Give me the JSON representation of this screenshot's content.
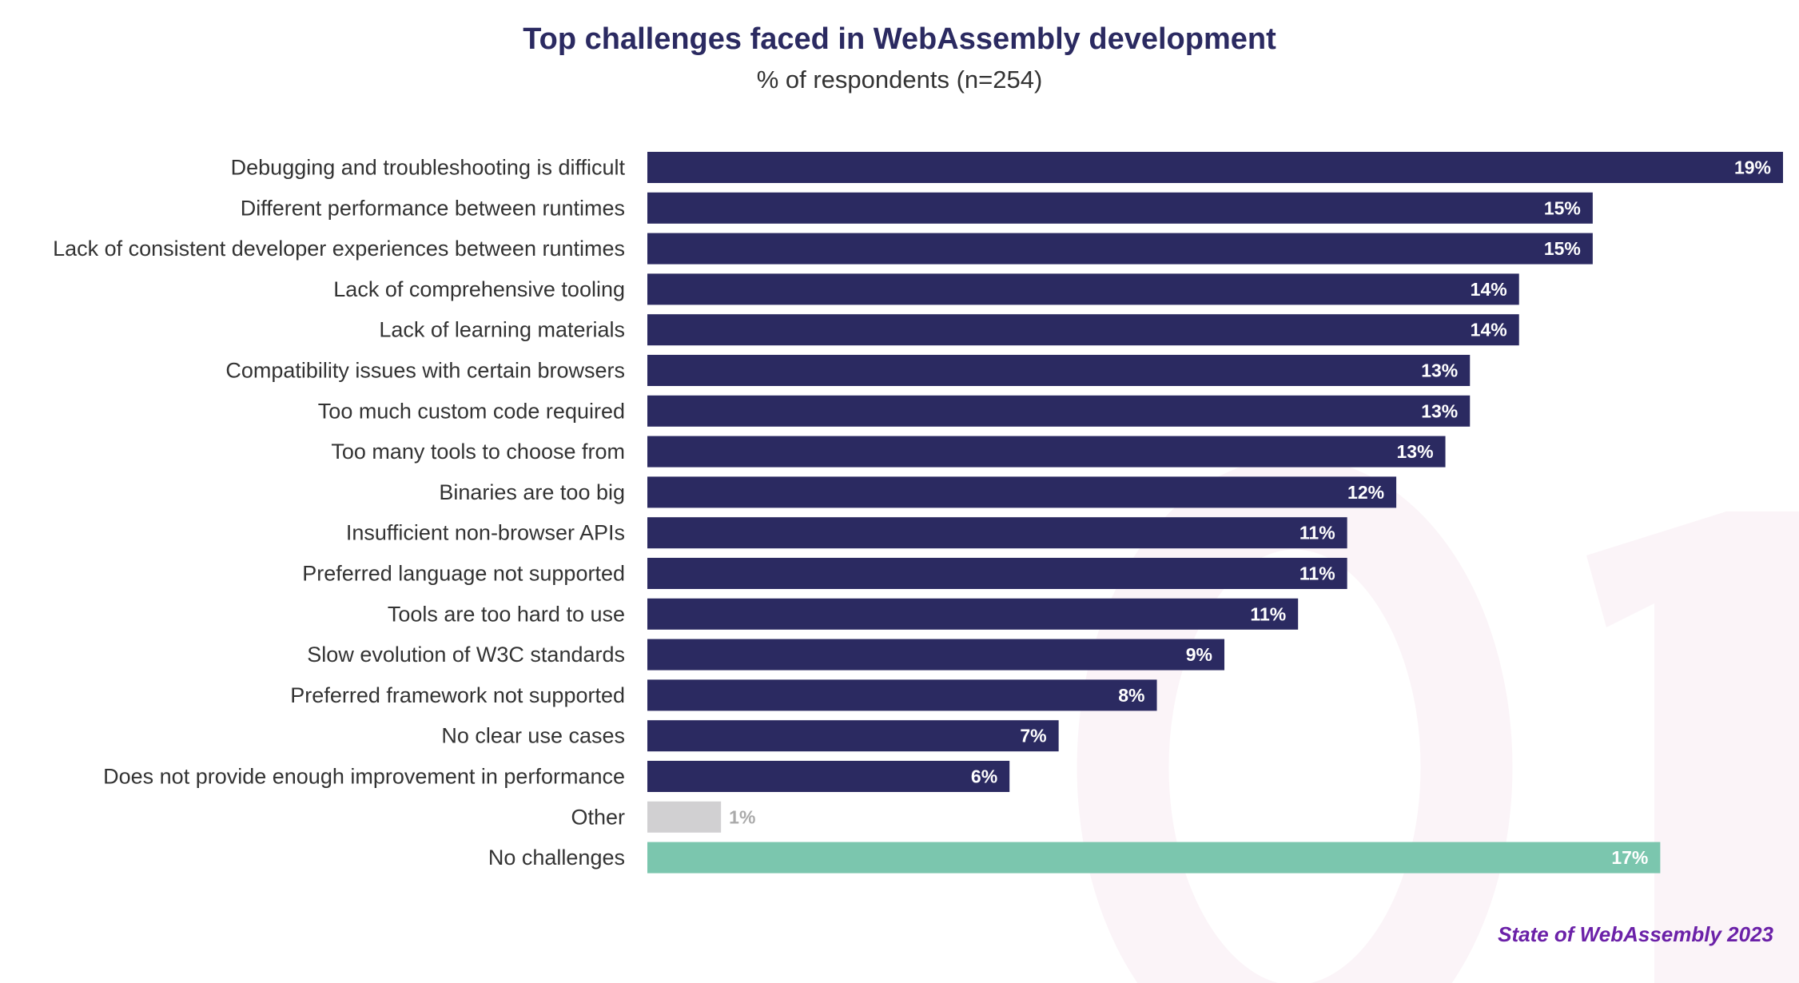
{
  "chart_data": {
    "type": "bar",
    "orientation": "horizontal",
    "title": "Top challenges faced in WebAssembly development",
    "subtitle": "% of respondents (n=254)",
    "categories": [
      "Debugging and troubleshooting is difficult",
      "Different performance between runtimes",
      "Lack of consistent developer experiences between runtimes",
      "Lack of comprehensive tooling",
      "Lack of learning materials",
      "Compatibility issues with certain browsers",
      "Too much custom code required",
      "Too many tools to choose from",
      "Binaries are too big",
      "Insufficient non-browser APIs",
      "Preferred language not supported",
      "Tools are too hard to use",
      "Slow evolution of W3C standards",
      "Preferred framework not supported",
      "No clear use cases",
      "Does not provide enough improvement in performance",
      "Other",
      "No challenges"
    ],
    "values": [
      18.5,
      15.4,
      15.4,
      14.2,
      14.2,
      13.4,
      13.4,
      13.0,
      12.2,
      11.4,
      11.4,
      10.6,
      9.4,
      8.3,
      6.7,
      5.9,
      1.2,
      16.5
    ],
    "labels": [
      "19%",
      "15%",
      "15%",
      "14%",
      "14%",
      "13%",
      "13%",
      "13%",
      "12%",
      "11%",
      "11%",
      "11%",
      "9%",
      "8%",
      "7%",
      "6%",
      "1%",
      "17%"
    ],
    "colors": [
      "#2b2a61",
      "#2b2a61",
      "#2b2a61",
      "#2b2a61",
      "#2b2a61",
      "#2b2a61",
      "#2b2a61",
      "#2b2a61",
      "#2b2a61",
      "#2b2a61",
      "#2b2a61",
      "#2b2a61",
      "#2b2a61",
      "#2b2a61",
      "#2b2a61",
      "#2b2a61",
      "#d1d0d2",
      "#7bc6ae"
    ],
    "xlim": [
      0,
      18.5
    ],
    "grid": false,
    "legend": "none"
  },
  "footer": "State of WebAssembly 2023",
  "watermark": "01",
  "theme": {
    "title": "#2b2a61",
    "footer": "#6b21a8",
    "watermark": "#fbf4f8"
  }
}
